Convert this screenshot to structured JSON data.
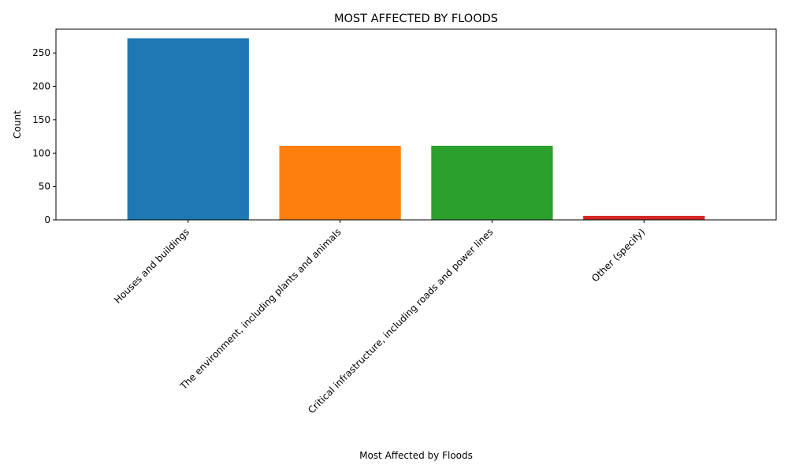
{
  "chart_data": {
    "type": "bar",
    "title": "MOST AFFECTED BY FLOODS",
    "xlabel": "Most Affected by Floods",
    "ylabel": "Count",
    "categories": [
      "Houses and buildings",
      "The environment, including plants and animals",
      "Critical infrastructure, including roads and power lines",
      "Other (specify)"
    ],
    "values": [
      272,
      111,
      111,
      6
    ],
    "colors": [
      "#1f77b4",
      "#ff7f0e",
      "#2ca02c",
      "#d62728"
    ],
    "ylim": [
      0,
      285.6
    ],
    "yticks": [
      0,
      50,
      100,
      150,
      200,
      250
    ],
    "grid": false,
    "legend": "none"
  }
}
